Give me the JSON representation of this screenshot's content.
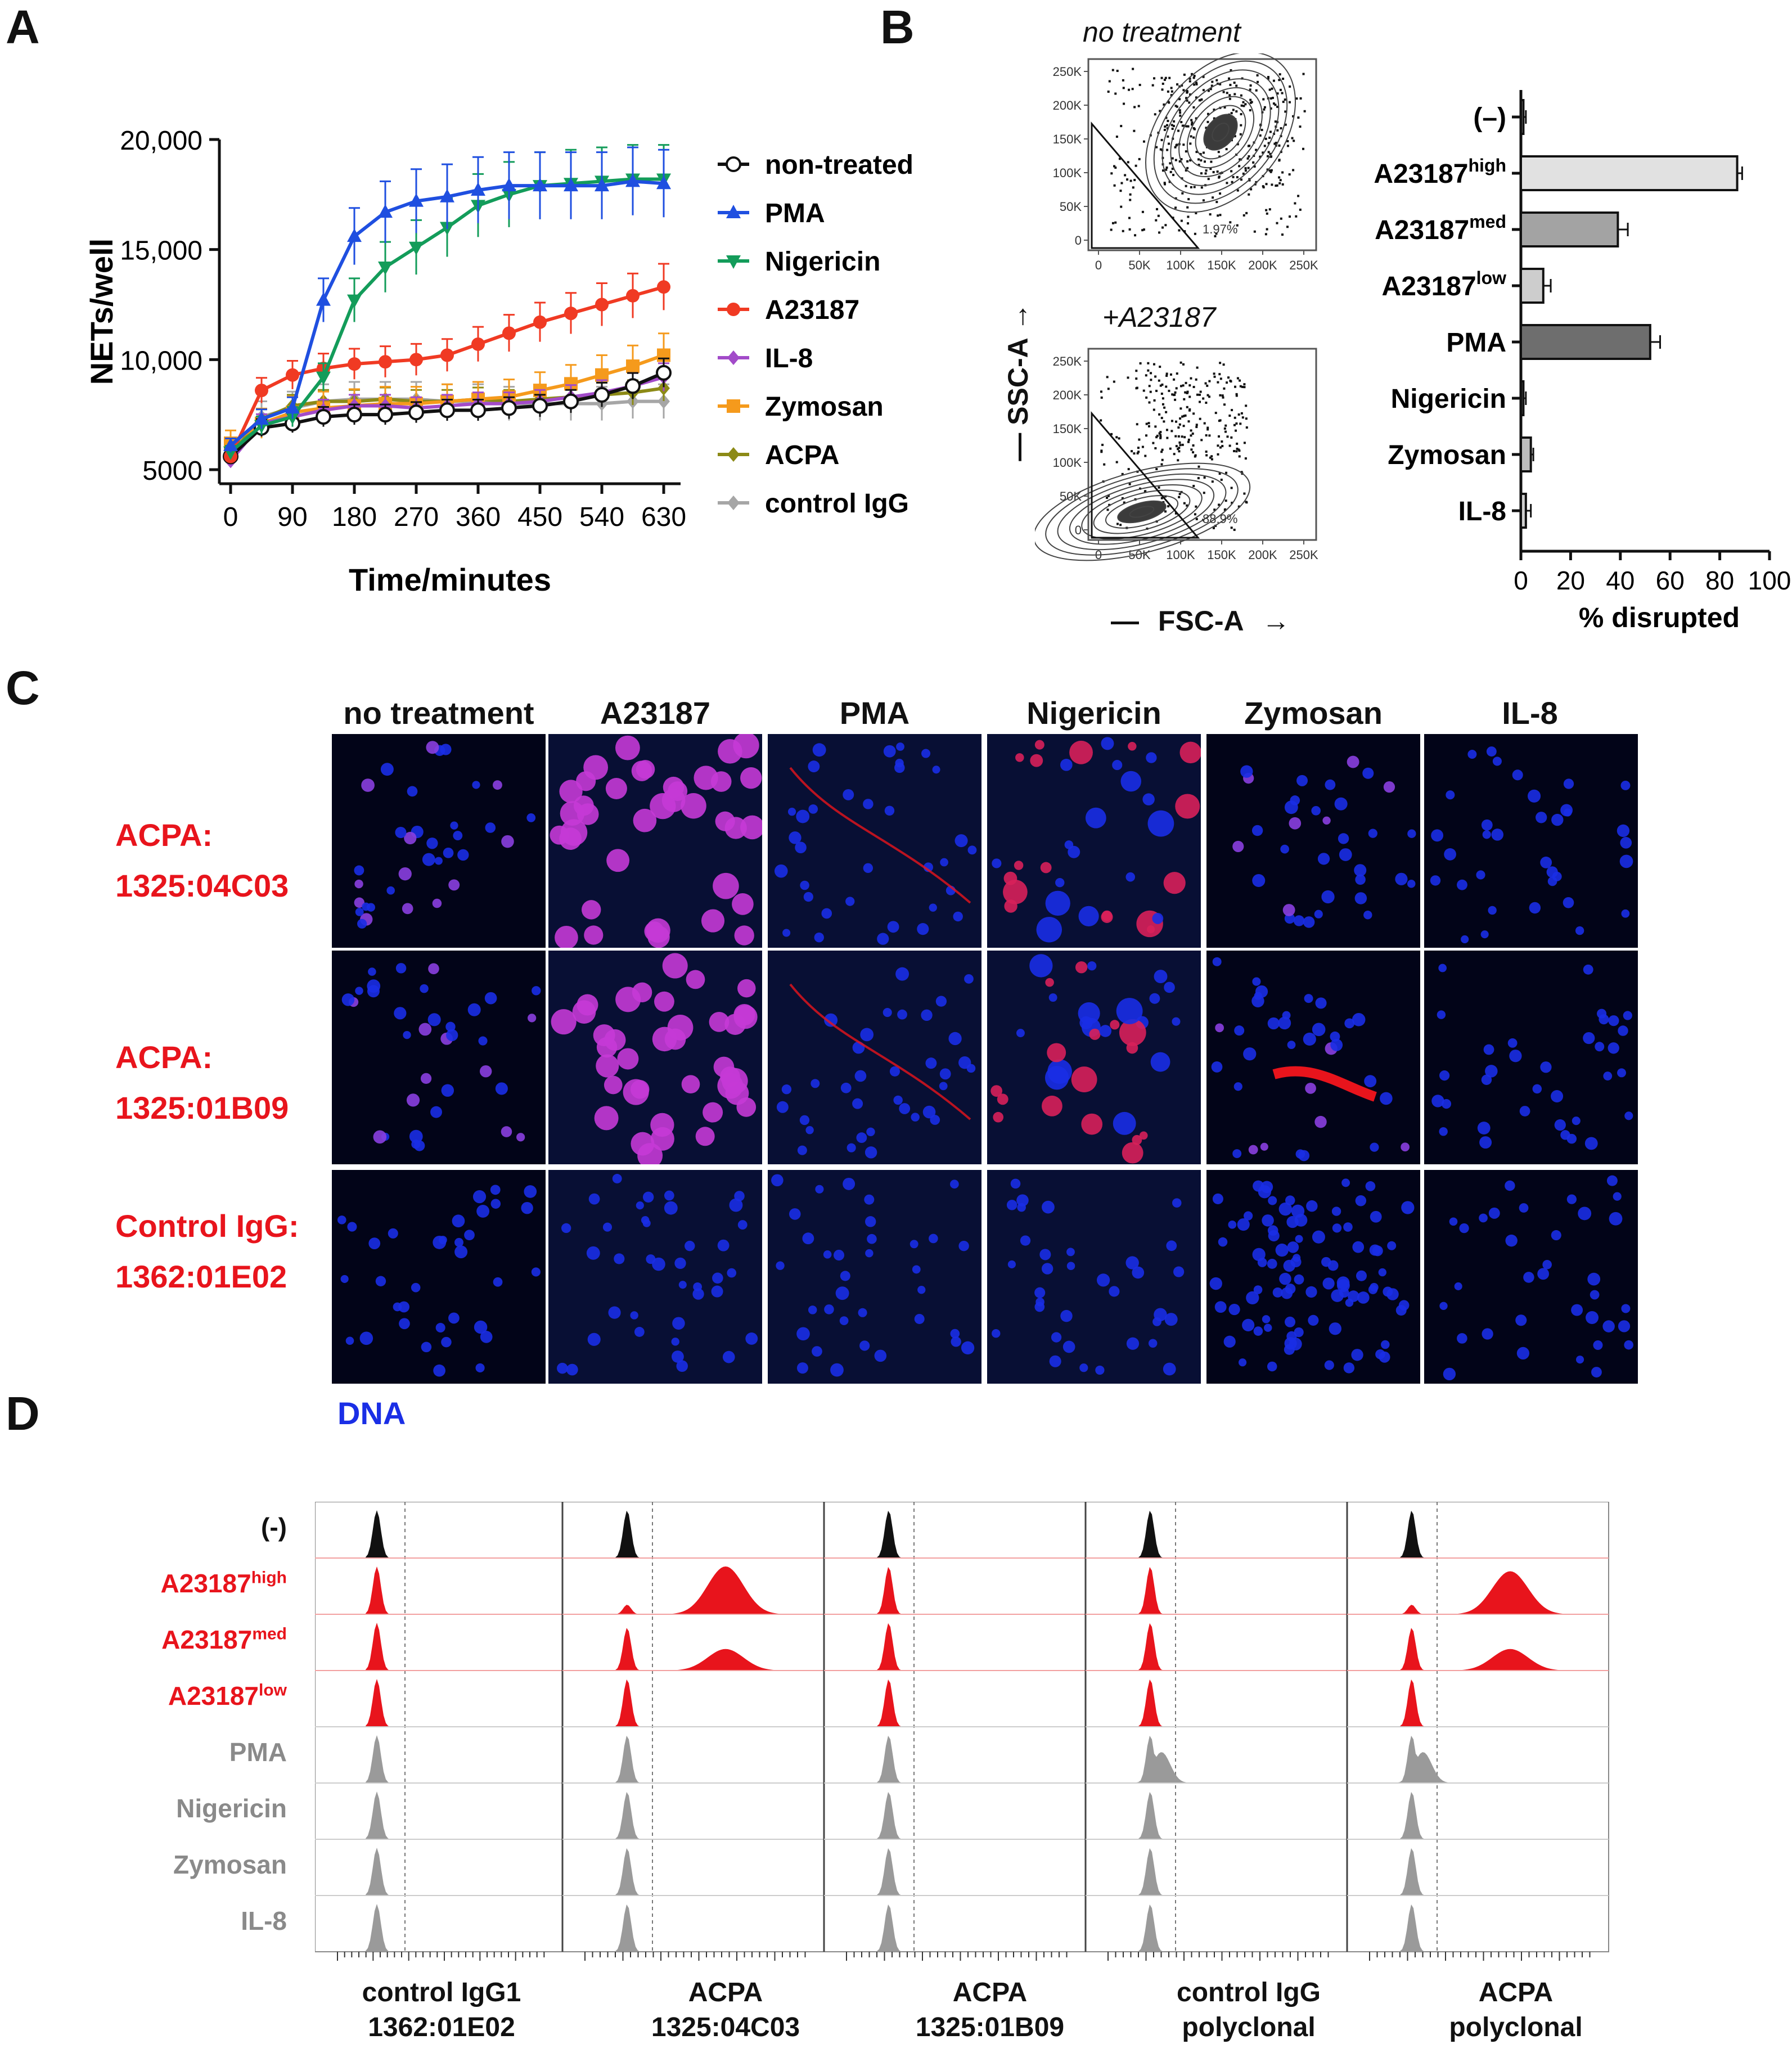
{
  "panels": {
    "a": "A",
    "b": "B",
    "c": "C",
    "d": "D"
  },
  "chart_data": [
    {
      "type": "line",
      "panel": "A",
      "xlabel": "Time/minutes",
      "ylabel": "NETs/well",
      "xlim": [
        0,
        630
      ],
      "ylim": [
        5000,
        20000
      ],
      "x_ticks": [
        "0",
        "90",
        "180",
        "270",
        "360",
        "450",
        "540",
        "630"
      ],
      "y_ticks": [
        "5000",
        "10,000",
        "15,000",
        "20,000"
      ],
      "x": [
        0,
        45,
        90,
        135,
        180,
        225,
        270,
        315,
        360,
        405,
        450,
        495,
        540,
        585,
        630
      ],
      "legend_position": "right",
      "series": [
        {
          "name": "non-treated",
          "color": "#111111",
          "marker": "circle-open",
          "values": [
            5600,
            6900,
            7100,
            7400,
            7500,
            7500,
            7600,
            7700,
            7700,
            7800,
            7900,
            8100,
            8400,
            8800,
            9400
          ]
        },
        {
          "name": "PMA",
          "color": "#1f4fe0",
          "marker": "triangle-up",
          "values": [
            6100,
            7300,
            7800,
            12700,
            15600,
            16700,
            17200,
            17400,
            17700,
            17900,
            17900,
            17900,
            17900,
            18100,
            18000
          ]
        },
        {
          "name": "Nigericin",
          "color": "#139c5a",
          "marker": "triangle-down",
          "values": [
            5800,
            7000,
            7400,
            9200,
            12700,
            14200,
            15100,
            16000,
            17000,
            17500,
            17900,
            18000,
            18100,
            18200,
            18200
          ]
        },
        {
          "name": "A23187",
          "color": "#f03a23",
          "marker": "circle",
          "values": [
            5600,
            8600,
            9300,
            9600,
            9800,
            9900,
            10000,
            10200,
            10700,
            11200,
            11700,
            12100,
            12500,
            12900,
            13300
          ]
        },
        {
          "name": "IL-8",
          "color": "#a24bc9",
          "marker": "diamond",
          "values": [
            5400,
            7100,
            7400,
            7700,
            7900,
            7900,
            7800,
            7900,
            8000,
            8000,
            8100,
            8300,
            8500,
            8800,
            9200
          ]
        },
        {
          "name": "Zymosan",
          "color": "#f59a1c",
          "marker": "square",
          "values": [
            6200,
            7100,
            7600,
            7800,
            7900,
            8000,
            8000,
            8100,
            8200,
            8300,
            8600,
            8900,
            9300,
            9700,
            10200
          ]
        },
        {
          "name": "ACPA",
          "color": "#8c8a16",
          "marker": "diamond",
          "values": [
            5700,
            7300,
            7900,
            8100,
            8100,
            8200,
            8100,
            8100,
            8200,
            8100,
            8200,
            8300,
            8400,
            8500,
            8700
          ]
        },
        {
          "name": "control IgG",
          "color": "#a6a6a6",
          "marker": "diamond",
          "values": [
            5800,
            7400,
            7800,
            8100,
            8200,
            8200,
            8200,
            8100,
            8100,
            8000,
            8000,
            8000,
            8000,
            8100,
            8100
          ]
        }
      ]
    },
    {
      "type": "bar",
      "panel": "B",
      "orientation": "horizontal",
      "xlabel": "% disrupted",
      "xlim": [
        0,
        100
      ],
      "x_ticks": [
        "0",
        "20",
        "40",
        "60",
        "80",
        "100"
      ],
      "categories": [
        "(–)",
        "A23187high",
        "A23187med",
        "A23187low",
        "PMA",
        "Nigericin",
        "Zymosan",
        "IL-8"
      ],
      "values": [
        1,
        87,
        39,
        9,
        52,
        1,
        4,
        2
      ],
      "errors": [
        1,
        2,
        4,
        3,
        4,
        1,
        1,
        2
      ]
    }
  ],
  "flow": {
    "top_title": "no treatment",
    "bottom_title": "+A23187",
    "ylabel": "SSC-A",
    "xlabel": "FSC-A",
    "arrow": "→",
    "dash": "—",
    "top_gate": "1.97%",
    "bottom_gate": "88.9%",
    "x_ticks": [
      "0",
      "50K",
      "100K",
      "150K",
      "200K",
      "250K"
    ],
    "y_ticks": [
      "0",
      "50K",
      "100K",
      "150K",
      "200K",
      "250K"
    ]
  },
  "bar_labels": [
    {
      "base": "(–)",
      "sup": ""
    },
    {
      "base": "A23187",
      "sup": "high"
    },
    {
      "base": "A23187",
      "sup": "med"
    },
    {
      "base": "A23187",
      "sup": "low"
    },
    {
      "base": "PMA",
      "sup": ""
    },
    {
      "base": "Nigericin",
      "sup": ""
    },
    {
      "base": "Zymosan",
      "sup": ""
    },
    {
      "base": "IL-8",
      "sup": ""
    }
  ],
  "microscopy": {
    "columns": [
      "no treatment",
      "A23187",
      "PMA",
      "Nigericin",
      "Zymosan",
      "IL-8"
    ],
    "rows": [
      {
        "line1": "ACPA:",
        "line2": "1325:04C03"
      },
      {
        "line1": "ACPA:",
        "line2": "1325:01B09"
      },
      {
        "line1": "Control IgG:",
        "line2": "1362:01E02"
      }
    ],
    "stain_label": "DNA",
    "dna_color": "#1a2ee6",
    "antibody_color": "#e8141c"
  },
  "histograms": {
    "row_labels": [
      {
        "base": "(-)",
        "sup": "",
        "color": "#111111"
      },
      {
        "base": "A23187",
        "sup": "high",
        "color": "#e8141c"
      },
      {
        "base": "A23187",
        "sup": "med",
        "color": "#e8141c"
      },
      {
        "base": "A23187",
        "sup": "low",
        "color": "#e8141c"
      },
      {
        "base": "PMA",
        "sup": "",
        "color": "#8a8a8a"
      },
      {
        "base": "Nigericin",
        "sup": "",
        "color": "#8a8a8a"
      },
      {
        "base": "Zymosan",
        "sup": "",
        "color": "#8a8a8a"
      },
      {
        "base": "IL-8",
        "sup": "",
        "color": "#8a8a8a"
      }
    ],
    "columns": [
      {
        "line1": "control IgG1",
        "line2": "1362:01E02"
      },
      {
        "line1": "ACPA",
        "line2": "1325:04C03"
      },
      {
        "line1": "ACPA",
        "line2": "1325:01B09"
      },
      {
        "line1": "control IgG",
        "line2": "polyclonal"
      },
      {
        "line1": "ACPA",
        "line2": "polyclonal"
      }
    ]
  }
}
